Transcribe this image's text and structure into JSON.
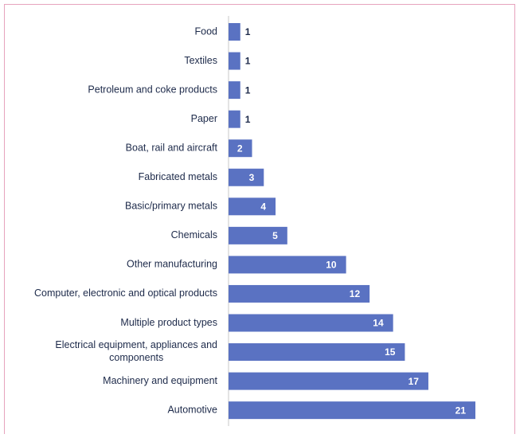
{
  "chart_data": {
    "type": "bar",
    "orientation": "horizontal",
    "categories": [
      "Food",
      "Textiles",
      "Petroleum and coke products",
      "Paper",
      "Boat, rail and aircraft",
      "Fabricated metals",
      "Basic/primary metals",
      "Chemicals",
      "Other manufacturing",
      "Computer, electronic and optical products",
      "Multiple product types",
      "Electrical equipment, appliances and components",
      "Machinery and equipment",
      "Automotive"
    ],
    "values": [
      1,
      1,
      1,
      1,
      2,
      3,
      4,
      5,
      10,
      12,
      14,
      15,
      17,
      21
    ],
    "color": "#5a72c2"
  }
}
